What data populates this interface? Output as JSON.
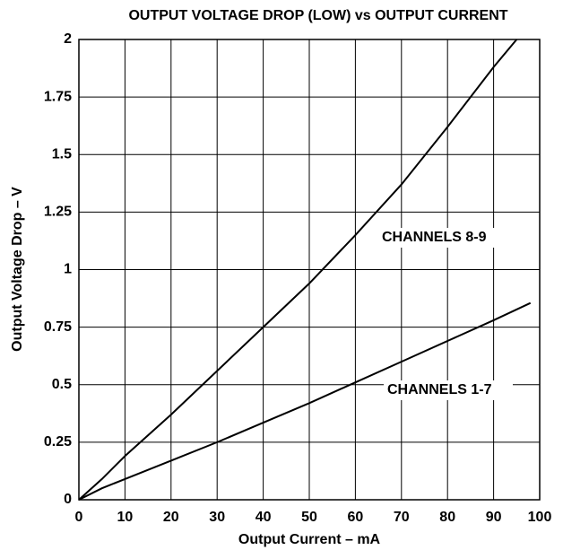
{
  "chart_data": {
    "type": "line",
    "title": "OUTPUT VOLTAGE DROP (LOW) vs OUTPUT CURRENT",
    "xlabel": "Output Current – mA",
    "ylabel": "Output Voltage Drop – V",
    "xlim": [
      0,
      100
    ],
    "ylim": [
      0,
      2
    ],
    "xticks": [
      0,
      10,
      20,
      30,
      40,
      50,
      60,
      70,
      80,
      90,
      100
    ],
    "yticks": [
      0,
      0.25,
      0.5,
      0.75,
      1,
      1.25,
      1.5,
      1.75,
      2
    ],
    "grid": true,
    "series": [
      {
        "name": "CHANNELS 8-9",
        "color": "#000000",
        "x": [
          0,
          5,
          10,
          20,
          30,
          40,
          50,
          60,
          70,
          80,
          90,
          95
        ],
        "values": [
          0,
          0.09,
          0.19,
          0.37,
          0.56,
          0.75,
          0.94,
          1.15,
          1.37,
          1.62,
          1.88,
          2.0
        ]
      },
      {
        "name": "CHANNELS 1-7",
        "color": "#000000",
        "x": [
          0,
          5,
          10,
          20,
          30,
          40,
          50,
          60,
          70,
          80,
          90,
          98
        ],
        "values": [
          0,
          0.05,
          0.09,
          0.17,
          0.25,
          0.335,
          0.42,
          0.51,
          0.6,
          0.69,
          0.78,
          0.855
        ]
      }
    ]
  }
}
